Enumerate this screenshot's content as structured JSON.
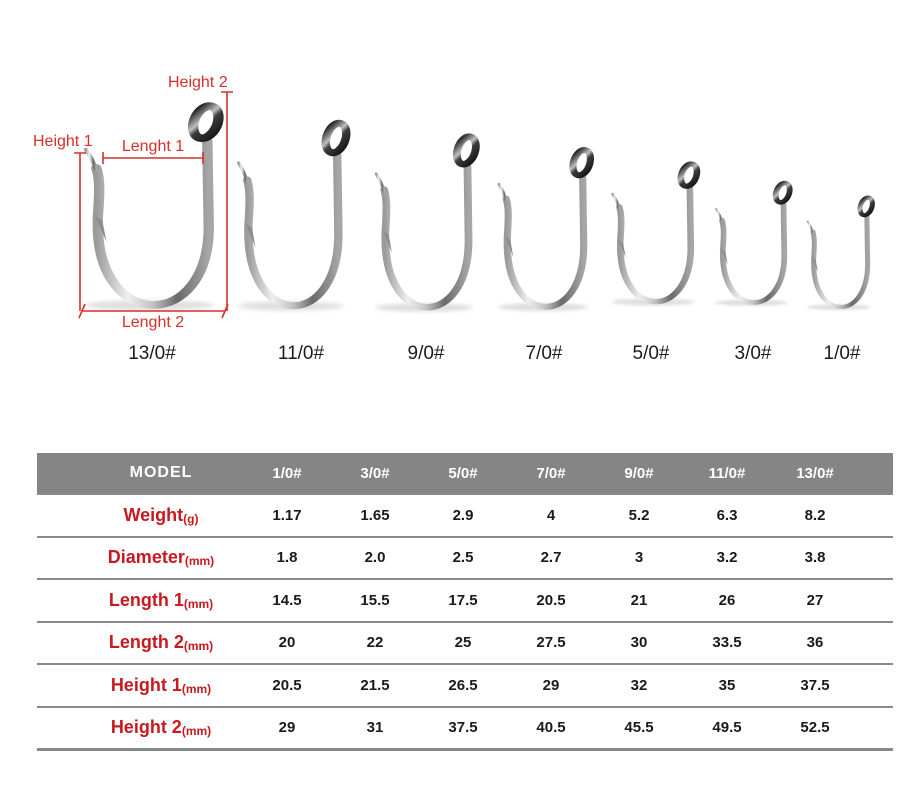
{
  "colors": {
    "annotation_red": "#d63029",
    "table_label_red": "#c8191e",
    "table_header_bg": "#858585",
    "table_header_text": "#ffffff",
    "table_separator_gray": "#898989"
  },
  "diagram": {
    "dimension_labels": {
      "height1": "Height 1",
      "height2": "Height 2",
      "length1": "Lenght 1",
      "length2": "Lenght 2"
    },
    "hooks": [
      {
        "label": "13/0#"
      },
      {
        "label": "11/0#"
      },
      {
        "label": "9/0#"
      },
      {
        "label": "7/0#"
      },
      {
        "label": "5/0#"
      },
      {
        "label": "3/0#"
      },
      {
        "label": "1/0#"
      }
    ]
  },
  "table": {
    "columns": [
      "MODEL",
      "1/0#",
      "3/0#",
      "5/0#",
      "7/0#",
      "9/0#",
      "11/0#",
      "13/0#"
    ],
    "rows": [
      {
        "label": "Weight",
        "unit": "(g)",
        "values": [
          "1.17",
          "1.65",
          "2.9",
          "4",
          "5.2",
          "6.3",
          "8.2"
        ]
      },
      {
        "label": "Diameter",
        "unit": "(mm)",
        "values": [
          "1.8",
          "2.0",
          "2.5",
          "2.7",
          "3",
          "3.2",
          "3.8"
        ]
      },
      {
        "label": "Length 1",
        "unit": "(mm)",
        "values": [
          "14.5",
          "15.5",
          "17.5",
          "20.5",
          "21",
          "26",
          "27"
        ]
      },
      {
        "label": "Length 2",
        "unit": "(mm)",
        "values": [
          "20",
          "22",
          "25",
          "27.5",
          "30",
          "33.5",
          "36"
        ]
      },
      {
        "label": "Height 1",
        "unit": "(mm)",
        "values": [
          "20.5",
          "21.5",
          "26.5",
          "29",
          "32",
          "35",
          "37.5"
        ]
      },
      {
        "label": "Height 2",
        "unit": "(mm)",
        "values": [
          "29",
          "31",
          "37.5",
          "40.5",
          "45.5",
          "49.5",
          "52.5"
        ]
      }
    ]
  }
}
